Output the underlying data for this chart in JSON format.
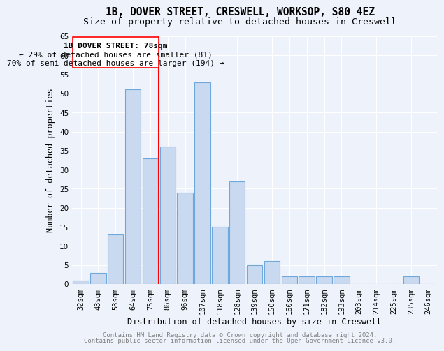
{
  "title1": "1B, DOVER STREET, CRESWELL, WORKSOP, S80 4EZ",
  "title2": "Size of property relative to detached houses in Creswell",
  "xlabel": "Distribution of detached houses by size in Creswell",
  "ylabel": "Number of detached properties",
  "footnote1": "Contains HM Land Registry data © Crown copyright and database right 2024.",
  "footnote2": "Contains public sector information licensed under the Open Government Licence v3.0.",
  "annotation_title": "1B DOVER STREET: 78sqm",
  "annotation_line1": "← 29% of detached houses are smaller (81)",
  "annotation_line2": "70% of semi-detached houses are larger (194) →",
  "bar_labels": [
    "32sqm",
    "43sqm",
    "53sqm",
    "64sqm",
    "75sqm",
    "86sqm",
    "96sqm",
    "107sqm",
    "118sqm",
    "128sqm",
    "139sqm",
    "150sqm",
    "160sqm",
    "171sqm",
    "182sqm",
    "193sqm",
    "203sqm",
    "214sqm",
    "225sqm",
    "235sqm",
    "246sqm"
  ],
  "bar_values": [
    1,
    3,
    13,
    51,
    33,
    36,
    24,
    53,
    15,
    27,
    5,
    6,
    2,
    2,
    2,
    2,
    0,
    0,
    0,
    2,
    0
  ],
  "bar_color": "#c9d9f0",
  "bar_edge_color": "#6fa8dc",
  "vline_x": 4.5,
  "vline_color": "red",
  "ylim": [
    0,
    65
  ],
  "yticks": [
    0,
    5,
    10,
    15,
    20,
    25,
    30,
    35,
    40,
    45,
    50,
    55,
    60,
    65
  ],
  "background_color": "#eef3fb",
  "grid_color": "#ffffff",
  "title1_fontsize": 10.5,
  "title2_fontsize": 9.5,
  "xlabel_fontsize": 8.5,
  "ylabel_fontsize": 8.5,
  "tick_fontsize": 7.5,
  "annotation_fontsize": 8,
  "footnote_fontsize": 6.5
}
